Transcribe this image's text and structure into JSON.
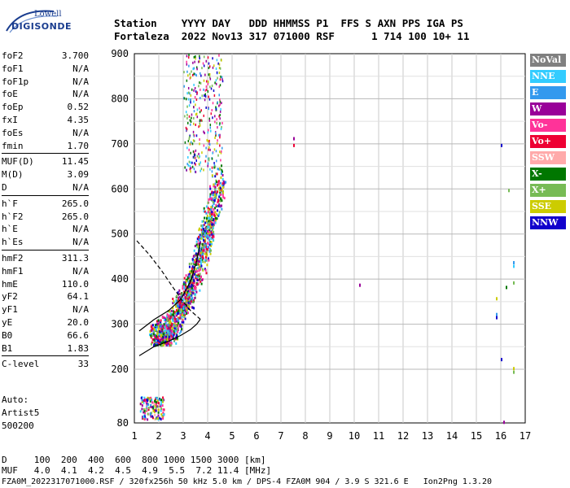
{
  "logo": {
    "line1": "Lowell",
    "line2": "DIGISONDE"
  },
  "header": {
    "row1": "Station    YYYY DAY   DDD HHMMSS P1  FFS S AXN PPS IGA PS",
    "row2": "Fortaleza  2022 Nov13 317 071000 RSF      1 714 100 10+ 11"
  },
  "params": [
    {
      "k": "foF2",
      "v": "3.700"
    },
    {
      "k": "foF1",
      "v": "N/A"
    },
    {
      "k": "foF1p",
      "v": "N/A"
    },
    {
      "k": "foE",
      "v": "N/A"
    },
    {
      "k": "foEp",
      "v": "0.52"
    },
    {
      "k": "fxI",
      "v": "4.35"
    },
    {
      "k": "foEs",
      "v": "N/A"
    },
    {
      "k": "fmin",
      "v": "1.70"
    },
    {
      "k": "MUF(D)",
      "v": "11.45"
    },
    {
      "k": "M(D)",
      "v": "3.09"
    },
    {
      "k": "D",
      "v": "N/A"
    },
    {
      "k": "h`F",
      "v": "265.0"
    },
    {
      "k": "h`F2",
      "v": "265.0"
    },
    {
      "k": "h`E",
      "v": "N/A"
    },
    {
      "k": "h`Es",
      "v": "N/A"
    },
    {
      "k": "hmF2",
      "v": "311.3"
    },
    {
      "k": "hmF1",
      "v": "N/A"
    },
    {
      "k": "hmE",
      "v": "110.0"
    },
    {
      "k": "yF2",
      "v": "64.1"
    },
    {
      "k": "yF1",
      "v": "N/A"
    },
    {
      "k": "yE",
      "v": "20.0"
    },
    {
      "k": "B0",
      "v": "66.6"
    },
    {
      "k": "B1",
      "v": "1.83"
    },
    {
      "k": "C-level",
      "v": "33"
    }
  ],
  "auto": {
    "l1": "Auto:",
    "l2": "Artist5",
    "l3": "500200"
  },
  "legend": [
    {
      "label": "NoVal",
      "color": "#808080"
    },
    {
      "label": "NNE",
      "color": "#33ccff"
    },
    {
      "label": "E",
      "color": "#3399ee"
    },
    {
      "label": "W",
      "color": "#990099"
    },
    {
      "label": "Vo-",
      "color": "#ff3399"
    },
    {
      "label": "Vo+",
      "color": "#ee0033"
    },
    {
      "label": "SSW",
      "color": "#ffaaaa"
    },
    {
      "label": "X-",
      "color": "#007700"
    },
    {
      "label": "X+",
      "color": "#77bb55"
    },
    {
      "label": "SSE",
      "color": "#cccc00"
    },
    {
      "label": "NNW",
      "color": "#1100cc"
    }
  ],
  "footer": {
    "d_row": "D     100  200  400  600  800 1000 1500 3000 [km]",
    "muf_row": "MUF   4.0  4.1  4.2  4.5  4.9  5.5  7.2 11.4 [MHz]",
    "file_row": "FZA0M_2022317071000.RSF / 320fx256h 50 kHz 5.0 km / DPS-4 FZA0M 904 / 3.9 S 321.6 E   Ion2Png 1.3.20"
  },
  "chart_data": {
    "type": "scatter",
    "xlim": [
      1,
      17
    ],
    "ylim": [
      80,
      900
    ],
    "xticks": [
      "1",
      "2",
      "3",
      "4",
      "5",
      "6",
      "7",
      "8",
      "9",
      "10",
      "11",
      "12",
      "13",
      "14",
      "15",
      "16",
      "17"
    ],
    "yticks": [
      "80",
      "200",
      "300",
      "400",
      "500",
      "600",
      "700",
      "800",
      "900"
    ],
    "grid": true,
    "profile_curve": [
      [
        1.2,
        230
      ],
      [
        1.8,
        250
      ],
      [
        2.4,
        262
      ],
      [
        2.9,
        275
      ],
      [
        3.3,
        288
      ],
      [
        3.55,
        300
      ],
      [
        3.7,
        311
      ]
    ],
    "trace_curve": [
      [
        1.2,
        285
      ],
      [
        1.8,
        310
      ],
      [
        2.4,
        330
      ],
      [
        2.9,
        355
      ],
      [
        3.3,
        395
      ],
      [
        3.55,
        440
      ],
      [
        3.7,
        480
      ]
    ],
    "dashed_curve": [
      [
        1.1,
        485
      ],
      [
        1.6,
        455
      ],
      [
        2.1,
        420
      ],
      [
        2.6,
        380
      ],
      [
        3.0,
        350
      ],
      [
        3.3,
        330
      ],
      [
        3.7,
        311
      ]
    ]
  }
}
